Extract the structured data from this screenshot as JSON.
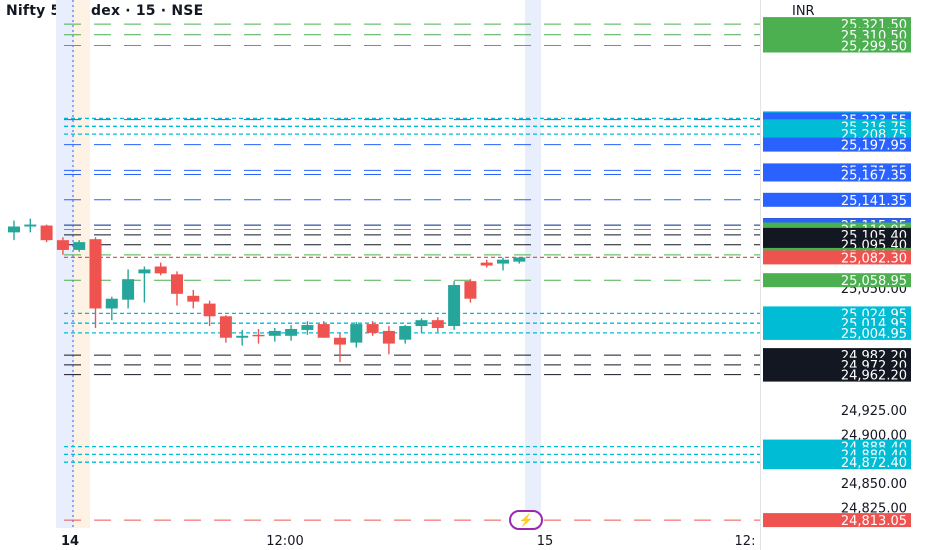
{
  "header": {
    "title": "Nifty 50 Index · 15 · NSE",
    "currency": "INR"
  },
  "icons": {
    "flash": "lightning-icon"
  },
  "chart_data": {
    "type": "candlestick",
    "y_range": [
      24805,
      25340
    ],
    "grid": false,
    "axis_ticks": [
      "25,050.00",
      "24,925.00",
      "24,900.00",
      "24,850.00",
      "24,825.00"
    ],
    "x_labels": [
      "14",
      "12:00",
      "15",
      "12:"
    ],
    "candles": [
      {
        "o": 25108,
        "h": 25120,
        "l": 25100,
        "c": 25114
      },
      {
        "o": 25114,
        "h": 25122,
        "l": 25108,
        "c": 25116
      },
      {
        "o": 25115,
        "h": 25116,
        "l": 25098,
        "c": 25100
      },
      {
        "o": 25100,
        "h": 25103,
        "l": 25085,
        "c": 25090
      },
      {
        "o": 25090,
        "h": 25100,
        "l": 25088,
        "c": 25098
      },
      {
        "o": 25101,
        "h": 25103,
        "l": 25010,
        "c": 25030
      },
      {
        "o": 25030,
        "h": 25042,
        "l": 25018,
        "c": 25040
      },
      {
        "o": 25039,
        "h": 25070,
        "l": 25030,
        "c": 25060
      },
      {
        "o": 25066,
        "h": 25073,
        "l": 25036,
        "c": 25070
      },
      {
        "o": 25073,
        "h": 25077,
        "l": 25064,
        "c": 25066
      },
      {
        "o": 25065,
        "h": 25068,
        "l": 25033,
        "c": 25045
      },
      {
        "o": 25043,
        "h": 25049,
        "l": 25030,
        "c": 25037
      },
      {
        "o": 25035,
        "h": 25038,
        "l": 25012,
        "c": 25022
      },
      {
        "o": 25022,
        "h": 25023,
        "l": 24995,
        "c": 25000
      },
      {
        "o": 25000,
        "h": 25008,
        "l": 24992,
        "c": 25002
      },
      {
        "o": 25003,
        "h": 25009,
        "l": 24994,
        "c": 25002
      },
      {
        "o": 25002,
        "h": 25010,
        "l": 24996,
        "c": 25007
      },
      {
        "o": 25002,
        "h": 25013,
        "l": 24997,
        "c": 25009
      },
      {
        "o": 25008,
        "h": 25017,
        "l": 25003,
        "c": 25013
      },
      {
        "o": 25014,
        "h": 25017,
        "l": 25000,
        "c": 25000
      },
      {
        "o": 25000,
        "h": 25005,
        "l": 24975,
        "c": 24993
      },
      {
        "o": 24995,
        "h": 25016,
        "l": 24990,
        "c": 25014
      },
      {
        "o": 25014,
        "h": 25017,
        "l": 25002,
        "c": 25005
      },
      {
        "o": 25007,
        "h": 25012,
        "l": 24983,
        "c": 24994
      },
      {
        "o": 24998,
        "h": 25013,
        "l": 24994,
        "c": 25012
      },
      {
        "o": 25012,
        "h": 25020,
        "l": 25005,
        "c": 25018
      },
      {
        "o": 25018,
        "h": 25021,
        "l": 25006,
        "c": 25010
      },
      {
        "o": 25012,
        "h": 25058,
        "l": 25008,
        "c": 25054
      },
      {
        "o": 25058,
        "h": 25060,
        "l": 25036,
        "c": 25040
      },
      {
        "o": 25077,
        "h": 25080,
        "l": 25072,
        "c": 25074
      },
      {
        "o": 25076,
        "h": 25082,
        "l": 25069,
        "c": 25080
      },
      {
        "o": 25078,
        "h": 25082,
        "l": 25076,
        "c": 25082.3
      }
    ],
    "levels": [
      {
        "value": 25321.5,
        "label": "25,321.50",
        "color": "#4caf50",
        "style": "dash"
      },
      {
        "value": 25310.5,
        "label": "25,310.50",
        "color": "#4caf50",
        "style": "dash"
      },
      {
        "value": 25299.5,
        "label": "25,299.50",
        "color": "#4caf50",
        "style": "dash"
      },
      {
        "value": 25224.75,
        "label": "25,224.75",
        "color": "#00bcd4",
        "style": "dot"
      },
      {
        "value": 25223.55,
        "label": "25,223.55",
        "color": "#2962ff",
        "style": "dash"
      },
      {
        "value": 25216.75,
        "label": "25,216.75",
        "color": "#00bcd4",
        "style": "dot"
      },
      {
        "value": 25208.75,
        "label": "25,208.75",
        "color": "#00bcd4",
        "style": "dot"
      },
      {
        "value": 25197.95,
        "label": "25,197.95",
        "color": "#2962ff",
        "style": "dash"
      },
      {
        "value": 25171.55,
        "label": "25,171.55",
        "color": "#2962ff",
        "style": "dash"
      },
      {
        "value": 25167.35,
        "label": "25,167.35",
        "color": "#2962ff",
        "style": "dash"
      },
      {
        "value": 25141.35,
        "label": "25,141.35",
        "color": "#2962ff",
        "style": "dash"
      },
      {
        "value": 25115.4,
        "label": "25,115.40",
        "color": "#131722",
        "style": "dash"
      },
      {
        "value": 25115.35,
        "label": "25,115.35",
        "color": "#2962ff",
        "style": "dash"
      },
      {
        "value": 25110.95,
        "label": "25,110.95",
        "color": "#4caf50",
        "style": "dash"
      },
      {
        "value": 25105.4,
        "label": "25,105.40",
        "color": "#131722",
        "style": "dash"
      },
      {
        "value": 25095.4,
        "label": "25,095.40",
        "color": "#131722",
        "style": "dash"
      },
      {
        "value": 25084.95,
        "label": "25,084.95",
        "color": "#4caf50",
        "style": "dash"
      },
      {
        "value": 25082.3,
        "label": "25,082.30",
        "color": "#ef5350",
        "style": "dot"
      },
      {
        "value": 25058.95,
        "label": "25,058.95",
        "color": "#4caf50",
        "style": "dash"
      },
      {
        "value": 25024.95,
        "label": "25,024.95",
        "color": "#00bcd4",
        "style": "dot"
      },
      {
        "value": 25014.95,
        "label": "25,014.95",
        "color": "#00bcd4",
        "style": "dot"
      },
      {
        "value": 25004.95,
        "label": "25,004.95",
        "color": "#00bcd4",
        "style": "dot"
      },
      {
        "value": 24982.2,
        "label": "24,982.20",
        "color": "#131722",
        "style": "dash"
      },
      {
        "value": 24972.2,
        "label": "24,972.20",
        "color": "#131722",
        "style": "dash"
      },
      {
        "value": 24962.2,
        "label": "24,962.20",
        "color": "#131722",
        "style": "dash"
      },
      {
        "value": 24888.4,
        "label": "24,888.40",
        "color": "#00bcd4",
        "style": "dot"
      },
      {
        "value": 24880.4,
        "label": "24,880.40",
        "color": "#00bcd4",
        "style": "dot"
      },
      {
        "value": 24872.4,
        "label": "24,872.40",
        "color": "#00bcd4",
        "style": "dot"
      },
      {
        "value": 24813.05,
        "label": "24,813.05",
        "color": "#ef5350",
        "style": "dash"
      }
    ],
    "up_color": "#26a69a",
    "down_color": "#ef5350"
  }
}
